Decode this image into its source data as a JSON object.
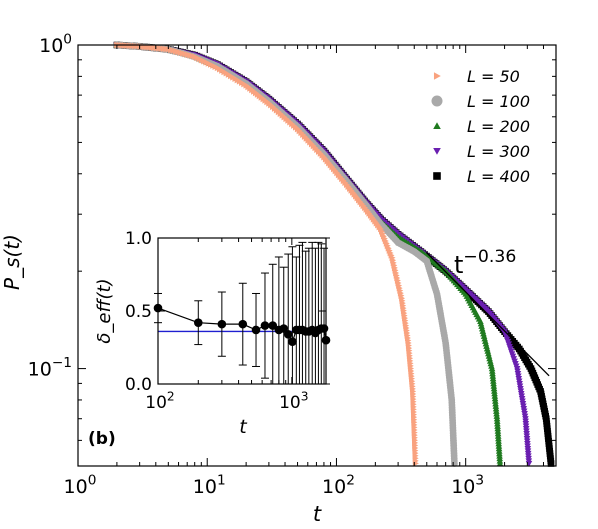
{
  "chart_data": [
    {
      "type": "scatter",
      "panel_label": "(b)",
      "xlabel": "t",
      "ylabel": "P_s(t)",
      "xscale": "log",
      "yscale": "log",
      "xlim": [
        1,
        5000
      ],
      "ylim": [
        0.05,
        1.0
      ],
      "x_ticks": [
        {
          "base": "10",
          "exp": "0"
        },
        {
          "base": "10",
          "exp": "1"
        },
        {
          "base": "10",
          "exp": "2"
        },
        {
          "base": "10",
          "exp": "3"
        }
      ],
      "y_ticks": [
        {
          "base": "10",
          "exp": "−1"
        },
        {
          "base": "10",
          "exp": "0"
        }
      ],
      "legend_position": "top-right",
      "series": [
        {
          "name": "L = 50",
          "marker": "triangle-right",
          "color": "#f9a27f",
          "points": [
            [
              2,
              1.0
            ],
            [
              3,
              0.99
            ],
            [
              5,
              0.97
            ],
            [
              8,
              0.92
            ],
            [
              12,
              0.85
            ],
            [
              20,
              0.75
            ],
            [
              30,
              0.66
            ],
            [
              50,
              0.55
            ],
            [
              80,
              0.45
            ],
            [
              120,
              0.37
            ],
            [
              170,
              0.31
            ],
            [
              220,
              0.27
            ],
            [
              270,
              0.22
            ],
            [
              320,
              0.165
            ],
            [
              360,
              0.12
            ],
            [
              390,
              0.085
            ],
            [
              410,
              0.05
            ]
          ]
        },
        {
          "name": "L = 100",
          "marker": "circle",
          "color": "#a9a9a9",
          "points": [
            [
              2,
              1.0
            ],
            [
              3,
              0.99
            ],
            [
              5,
              0.97
            ],
            [
              8,
              0.92
            ],
            [
              12,
              0.86
            ],
            [
              20,
              0.76
            ],
            [
              30,
              0.67
            ],
            [
              50,
              0.56
            ],
            [
              80,
              0.46
            ],
            [
              120,
              0.38
            ],
            [
              170,
              0.32
            ],
            [
              220,
              0.28
            ],
            [
              300,
              0.245
            ],
            [
              400,
              0.23
            ],
            [
              500,
              0.215
            ],
            [
              600,
              0.17
            ],
            [
              700,
              0.12
            ],
            [
              780,
              0.08
            ],
            [
              820,
              0.05
            ]
          ]
        },
        {
          "name": "L = 200",
          "marker": "triangle-up",
          "color": "#1f7a1f",
          "points": [
            [
              2,
              1.0
            ],
            [
              3,
              0.99
            ],
            [
              5,
              0.97
            ],
            [
              8,
              0.92
            ],
            [
              12,
              0.86
            ],
            [
              20,
              0.76
            ],
            [
              30,
              0.67
            ],
            [
              50,
              0.56
            ],
            [
              80,
              0.46
            ],
            [
              120,
              0.38
            ],
            [
              170,
              0.32
            ],
            [
              220,
              0.285
            ],
            [
              300,
              0.255
            ],
            [
              450,
              0.23
            ],
            [
              700,
              0.2
            ],
            [
              1000,
              0.17
            ],
            [
              1300,
              0.14
            ],
            [
              1600,
              0.1
            ],
            [
              1750,
              0.07
            ],
            [
              1850,
              0.05
            ]
          ]
        },
        {
          "name": "L = 300",
          "marker": "triangle-down",
          "color": "#6a1fb0",
          "points": [
            [
              2,
              1.0
            ],
            [
              3,
              0.99
            ],
            [
              5,
              0.97
            ],
            [
              8,
              0.93
            ],
            [
              12,
              0.87
            ],
            [
              20,
              0.77
            ],
            [
              30,
              0.68
            ],
            [
              50,
              0.57
            ],
            [
              80,
              0.47
            ],
            [
              120,
              0.385
            ],
            [
              170,
              0.325
            ],
            [
              220,
              0.29
            ],
            [
              300,
              0.26
            ],
            [
              450,
              0.23
            ],
            [
              700,
              0.2
            ],
            [
              1000,
              0.175
            ],
            [
              1500,
              0.15
            ],
            [
              2000,
              0.13
            ],
            [
              2500,
              0.1
            ],
            [
              2900,
              0.07
            ],
            [
              3100,
              0.05
            ]
          ]
        },
        {
          "name": "L = 400",
          "marker": "square",
          "color": "#000000",
          "points": [
            [
              2,
              1.0
            ],
            [
              3,
              0.99
            ],
            [
              5,
              0.97
            ],
            [
              8,
              0.93
            ],
            [
              12,
              0.87
            ],
            [
              20,
              0.77
            ],
            [
              30,
              0.68
            ],
            [
              50,
              0.57
            ],
            [
              80,
              0.47
            ],
            [
              120,
              0.385
            ],
            [
              170,
              0.325
            ],
            [
              220,
              0.29
            ],
            [
              300,
              0.26
            ],
            [
              450,
              0.23
            ],
            [
              700,
              0.2
            ],
            [
              1000,
              0.175
            ],
            [
              1500,
              0.15
            ],
            [
              2000,
              0.13
            ],
            [
              2600,
              0.115
            ],
            [
              3200,
              0.1
            ],
            [
              3800,
              0.085
            ],
            [
              4200,
              0.07
            ],
            [
              4600,
              0.05
            ]
          ]
        }
      ],
      "reference_line": {
        "label_base": "t",
        "label_exp": "−0.36",
        "exponent": -0.36,
        "x_start": 400,
        "x_end": 4500,
        "y_start": 0.232
      },
      "inset": {
        "type": "line",
        "xlabel": "t",
        "ylabel": "δ_eff(t)",
        "xscale": "log",
        "xlim": [
          100,
          1800
        ],
        "ylim": [
          0.0,
          1.0
        ],
        "x_ticks": [
          {
            "base": "10",
            "exp": "2"
          },
          {
            "base": "10",
            "exp": "3"
          }
        ],
        "y_ticks": [
          "0.0",
          "0.5",
          "1.0"
        ],
        "horizontal_line": {
          "y": 0.36,
          "color": "#1f1fd0"
        },
        "points": [
          [
            100,
            0.52,
            0.1
          ],
          [
            200,
            0.42,
            0.15
          ],
          [
            300,
            0.41,
            0.22
          ],
          [
            430,
            0.41,
            0.28
          ],
          [
            540,
            0.37,
            0.25
          ],
          [
            630,
            0.4,
            0.36
          ],
          [
            720,
            0.4,
            0.42
          ],
          [
            800,
            0.37,
            0.5
          ],
          [
            870,
            0.38,
            0.42
          ],
          [
            940,
            0.34,
            0.55
          ],
          [
            1010,
            0.29,
            0.65
          ],
          [
            1080,
            0.37,
            0.5
          ],
          [
            1140,
            0.37,
            0.58
          ],
          [
            1200,
            0.37,
            0.6
          ],
          [
            1270,
            0.36,
            0.55
          ],
          [
            1340,
            0.36,
            0.57
          ],
          [
            1420,
            0.37,
            0.6
          ],
          [
            1500,
            0.35,
            0.58
          ],
          [
            1580,
            0.37,
            0.6
          ],
          [
            1660,
            0.38,
            0.58
          ],
          [
            1740,
            0.38,
            0.55
          ],
          [
            1800,
            0.3,
            0.7
          ]
        ]
      }
    }
  ]
}
